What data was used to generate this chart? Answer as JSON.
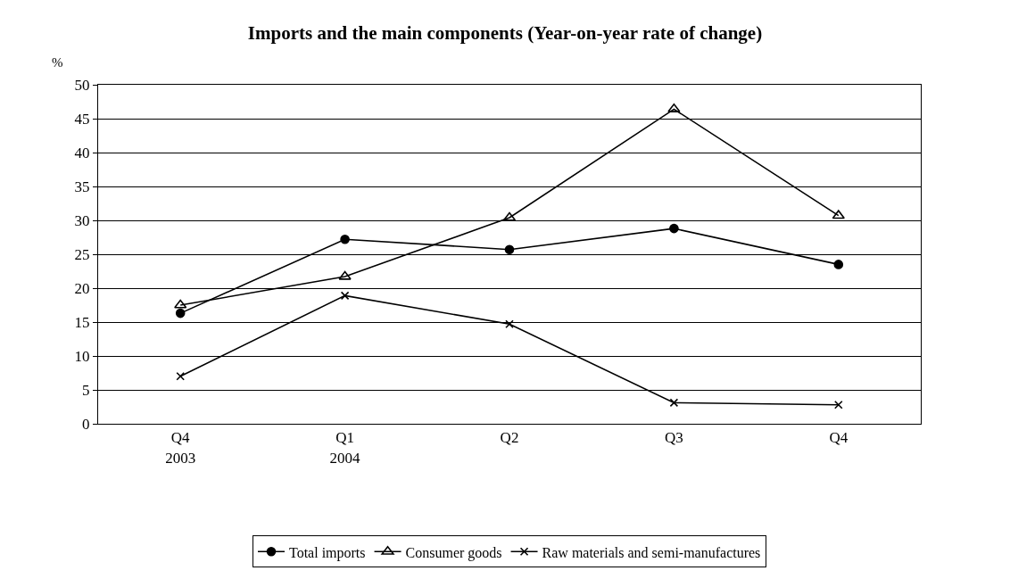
{
  "chart_data": {
    "type": "line",
    "title": "Imports and the main components (Year-on-year rate of change)",
    "ylabel": "%",
    "categories": [
      "Q4\n2003",
      "Q1\n2004",
      "Q2",
      "Q3",
      "Q4"
    ],
    "series": [
      {
        "name": "Total imports",
        "color": "#000000",
        "marker": "circle",
        "values": [
          16.3,
          27.2,
          25.7,
          28.8,
          23.5
        ]
      },
      {
        "name": "Consumer goods",
        "color": "#000000",
        "marker": "triangle",
        "values": [
          17.5,
          21.7,
          30.4,
          46.4,
          30.7
        ]
      },
      {
        "name": "Raw materials and semi-manufactures",
        "color": "#000000",
        "marker": "cross",
        "values": [
          7.0,
          18.9,
          14.7,
          3.1,
          2.8
        ]
      }
    ],
    "ylim": [
      0,
      50
    ],
    "yticks": [
      0,
      5,
      10,
      15,
      20,
      25,
      30,
      35,
      40,
      45,
      50
    ],
    "grid": "y",
    "legend": "bottom",
    "line_style": "solid"
  }
}
